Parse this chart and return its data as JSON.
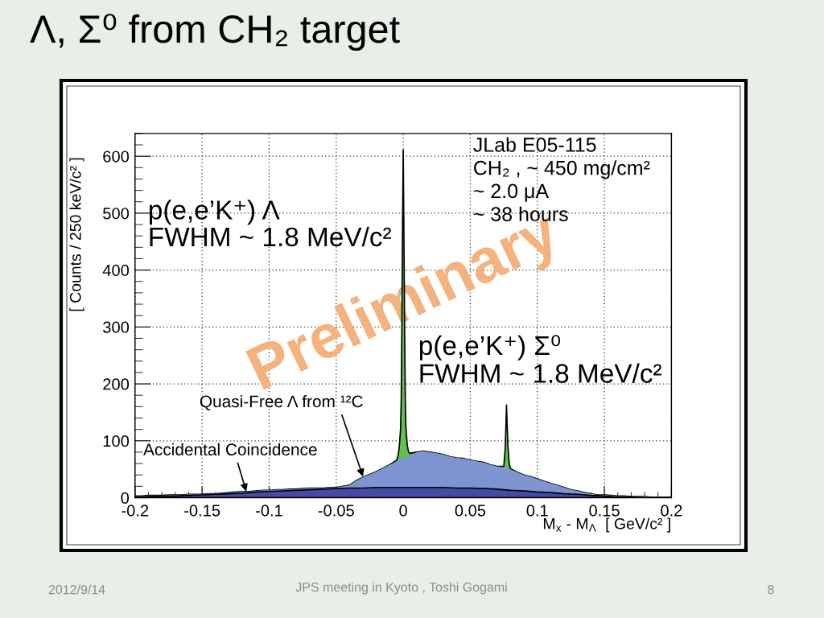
{
  "chart_data": {
    "type": "area",
    "title": "Λ, Σ⁰ from CH₂ target",
    "xlabel": "M$_{x}$ - M$_{Λ}$  [ GeV/c² ]",
    "ylabel": "[ Counts / 250 keV/c² ]",
    "xlim": [
      -0.2,
      0.2
    ],
    "xticks": [
      -0.2,
      -0.15,
      -0.1,
      -0.05,
      0,
      0.05,
      0.1,
      0.15,
      0.2
    ],
    "ylim": [
      0,
      640
    ],
    "yticks": [
      0,
      100,
      200,
      300,
      400,
      500,
      600
    ],
    "grid": true,
    "series": [
      {
        "color": "#62c04e",
        "line_style": "solid",
        "x": [
          -0.2,
          -0.195,
          -0.19,
          -0.185,
          -0.18,
          -0.175,
          -0.17,
          -0.165,
          -0.16,
          -0.155,
          -0.15,
          -0.145,
          -0.14,
          -0.135,
          -0.13,
          -0.125,
          -0.12,
          -0.115,
          -0.11,
          -0.105,
          -0.1,
          -0.095,
          -0.09,
          -0.085,
          -0.08,
          -0.075,
          -0.07,
          -0.065,
          -0.06,
          -0.055,
          -0.05,
          -0.045,
          -0.04,
          -0.035,
          -0.03,
          -0.025,
          -0.02,
          -0.015,
          -0.01,
          -0.005,
          -0.004,
          -0.003,
          -0.002,
          -0.0015,
          -0.001,
          -0.0005,
          0,
          0.0005,
          0.001,
          0.0015,
          0.002,
          0.003,
          0.004,
          0.005,
          0.01,
          0.015,
          0.02,
          0.025,
          0.03,
          0.035,
          0.04,
          0.045,
          0.05,
          0.055,
          0.06,
          0.065,
          0.07,
          0.075,
          0.076,
          0.0765,
          0.077,
          0.0775,
          0.078,
          0.079,
          0.08,
          0.085,
          0.09,
          0.095,
          0.1,
          0.105,
          0.11,
          0.115,
          0.12,
          0.125,
          0.13,
          0.135,
          0.14,
          0.145,
          0.15,
          0.155,
          0.16,
          0.165,
          0.17,
          0.175,
          0.18,
          0.185,
          0.19,
          0.195,
          0.2
        ],
        "values": [
          3,
          3,
          4,
          4,
          4,
          5,
          5,
          5,
          6,
          6,
          6,
          7,
          7,
          8,
          9,
          10,
          11,
          11,
          12,
          13,
          13,
          14,
          14,
          15,
          15,
          16,
          17,
          17,
          17,
          18,
          18,
          20,
          22,
          30,
          36,
          41,
          46,
          52,
          58,
          66,
          72,
          88,
          120,
          170,
          300,
          480,
          611,
          470,
          310,
          180,
          125,
          92,
          80,
          78,
          80,
          82,
          80,
          78,
          76,
          72,
          70,
          69,
          66,
          64,
          62,
          58,
          55,
          55,
          85,
          120,
          163,
          130,
          95,
          60,
          51,
          45,
          40,
          37,
          33,
          29,
          25,
          22,
          18,
          14,
          12,
          9,
          7,
          5,
          5,
          4,
          3,
          3,
          2,
          2,
          2,
          1,
          1,
          1,
          1
        ]
      },
      {
        "color": "#7d94d0",
        "x": [
          -0.2,
          -0.195,
          -0.19,
          -0.185,
          -0.18,
          -0.175,
          -0.17,
          -0.165,
          -0.16,
          -0.155,
          -0.15,
          -0.145,
          -0.14,
          -0.135,
          -0.13,
          -0.125,
          -0.12,
          -0.115,
          -0.11,
          -0.105,
          -0.1,
          -0.095,
          -0.09,
          -0.085,
          -0.08,
          -0.075,
          -0.07,
          -0.065,
          -0.06,
          -0.055,
          -0.05,
          -0.045,
          -0.04,
          -0.035,
          -0.03,
          -0.025,
          -0.02,
          -0.015,
          -0.01,
          -0.005,
          0,
          0.005,
          0.01,
          0.015,
          0.02,
          0.025,
          0.03,
          0.035,
          0.04,
          0.045,
          0.05,
          0.055,
          0.06,
          0.065,
          0.07,
          0.075,
          0.08,
          0.085,
          0.09,
          0.095,
          0.1,
          0.105,
          0.11,
          0.115,
          0.12,
          0.125,
          0.13,
          0.135,
          0.14,
          0.145,
          0.15,
          0.155,
          0.16,
          0.165,
          0.17,
          0.175,
          0.18,
          0.185,
          0.19,
          0.195,
          0.2
        ],
        "values": [
          3,
          3,
          4,
          4,
          4,
          5,
          5,
          5,
          6,
          6,
          6,
          7,
          7,
          8,
          9,
          10,
          11,
          11,
          12,
          13,
          13,
          14,
          14,
          15,
          15,
          16,
          17,
          17,
          17,
          18,
          18,
          20,
          22,
          30,
          36,
          41,
          46,
          52,
          58,
          64,
          69,
          74,
          80,
          82,
          80,
          78,
          76,
          72,
          70,
          69,
          66,
          64,
          62,
          58,
          55,
          53,
          50,
          45,
          40,
          37,
          33,
          29,
          25,
          22,
          18,
          14,
          12,
          9,
          7,
          5,
          5,
          4,
          3,
          3,
          2,
          2,
          2,
          1,
          1,
          1,
          1
        ]
      },
      {
        "color": "#454aa6",
        "line_style": "solid",
        "x": [
          -0.2,
          -0.19,
          -0.18,
          -0.17,
          -0.16,
          -0.15,
          -0.14,
          -0.13,
          -0.12,
          -0.11,
          -0.1,
          -0.09,
          -0.08,
          -0.07,
          -0.06,
          -0.05,
          -0.04,
          -0.03,
          -0.02,
          -0.01,
          0,
          0.01,
          0.02,
          0.03,
          0.04,
          0.05,
          0.06,
          0.07,
          0.08,
          0.09,
          0.1,
          0.11,
          0.12,
          0.13,
          0.14,
          0.15,
          0.16,
          0.17,
          0.18,
          0.19,
          0.2
        ],
        "values": [
          1,
          2,
          3,
          3,
          4,
          5,
          6,
          7,
          8,
          10,
          11,
          12,
          13,
          14,
          15,
          16,
          17,
          17,
          18,
          18,
          18,
          18,
          18,
          18,
          17,
          17,
          16,
          15,
          13,
          12,
          10,
          9,
          7,
          6,
          4,
          3,
          1,
          1,
          0,
          0,
          0
        ]
      }
    ],
    "annotations": [
      "JLab E05-115\nCH₂ , ~ 450 mg/cm²\n~ 2.0 μA\n~ 38 hours",
      "p(e,e’K⁺) Λ\nFWHM ~ 1.8 MeV/c²",
      "p(e,e’K⁺) Σ⁰\nFWHM ~ 1.8 MeV/c²",
      "Preliminary",
      {
        "text": "Quasi-Free Λ from ¹²C",
        "x": -0.03,
        "y": 37
      },
      {
        "text": "Accidental Coincidence",
        "x": -0.117,
        "y": 11
      },
      "2012/9/14",
      "JPS meeting in Kyoto , Toshi Gogami",
      "8"
    ]
  }
}
